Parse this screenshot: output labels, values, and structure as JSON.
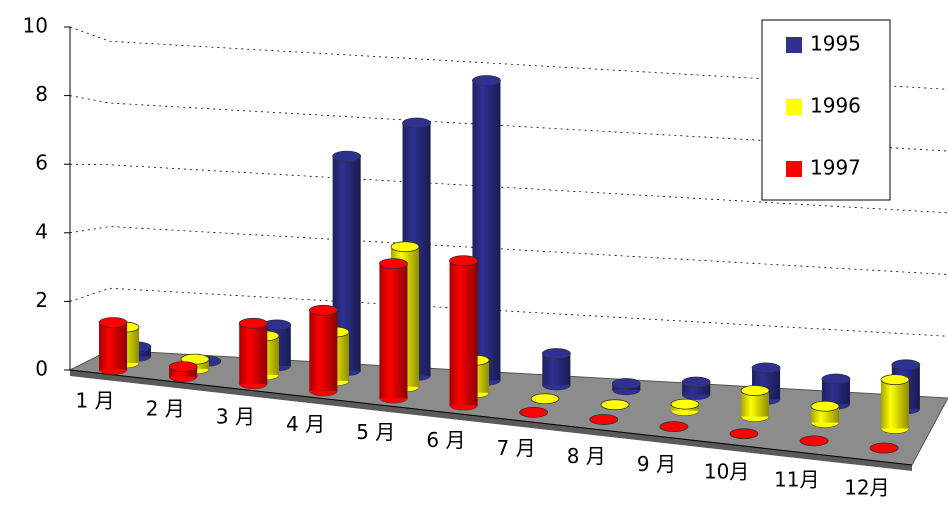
{
  "chart_data": {
    "type": "bar3d",
    "categories": [
      "1 月",
      "2 月",
      "3 月",
      "4 月",
      "5 月",
      "6 月",
      "7 月",
      "8 月",
      "9 月",
      "10月",
      "11月",
      "12月"
    ],
    "series": [
      {
        "name": "1995",
        "color": "#2e3192",
        "values": [
          0.3,
          0,
          1.3,
          6.8,
          8.0,
          9.5,
          1.0,
          0.2,
          0.4,
          1.0,
          0.8,
          1.4
        ]
      },
      {
        "name": "1996",
        "color": "#ffff00",
        "values": [
          1.1,
          0.3,
          1.2,
          1.5,
          4.3,
          1.0,
          0,
          0,
          0.2,
          0.8,
          0.5,
          1.5
        ]
      },
      {
        "name": "1997",
        "color": "#ff0000",
        "values": [
          1.4,
          0.3,
          1.8,
          2.4,
          4.0,
          4.3,
          0,
          0,
          0,
          0,
          0,
          0
        ]
      }
    ],
    "ylim": [
      0,
      10
    ],
    "yticks": [
      0,
      2,
      4,
      6,
      8,
      10
    ],
    "grid": true,
    "legend": "top-right"
  }
}
